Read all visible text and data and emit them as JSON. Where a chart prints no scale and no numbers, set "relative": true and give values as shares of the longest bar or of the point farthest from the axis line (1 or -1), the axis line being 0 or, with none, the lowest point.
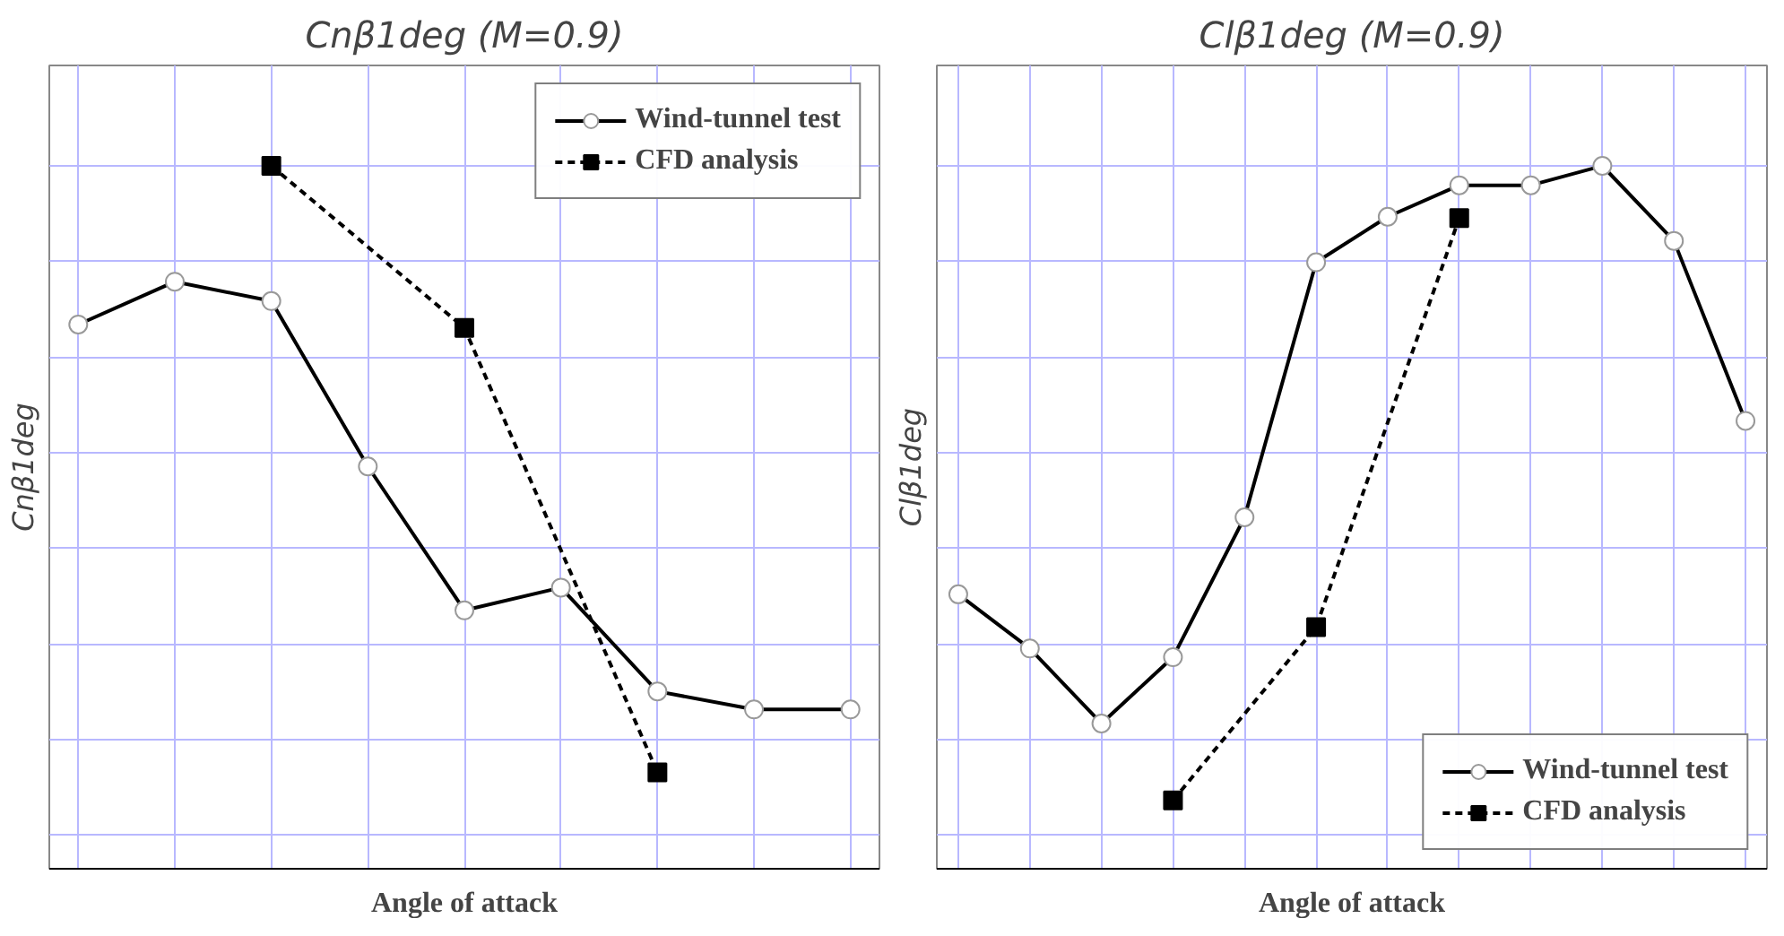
{
  "chart_data": [
    {
      "type": "line",
      "title": "Cnβ1deg (M=0.9)",
      "xlabel": "Angle of attack",
      "ylabel": "Cnβ1deg",
      "relative": true,
      "grid": true,
      "legend": "top right",
      "categories": [
        null,
        null,
        null,
        null,
        null,
        null,
        null,
        null,
        null
      ],
      "series": [
        {
          "name": "Wind-tunnel test",
          "color": "#000000",
          "marker": "circle",
          "line_style": "solid",
          "values": [
            0.763,
            0.827,
            0.798,
            0.551,
            0.336,
            0.37,
            0.215,
            0.188,
            0.188
          ]
        },
        {
          "name": "CFD analysis",
          "color": "#000000",
          "marker": "square",
          "line_style": "dashed",
          "values": [
            null,
            null,
            1.0,
            null,
            0.758,
            null,
            0.094,
            null,
            null
          ]
        }
      ]
    },
    {
      "type": "line",
      "title": "Clβ1deg (M=0.9)",
      "xlabel": "Angle of attack",
      "ylabel": "Clβ1deg",
      "relative": true,
      "grid": true,
      "legend": "bottom right",
      "categories": [
        null,
        null,
        null,
        null,
        null,
        null,
        null,
        null,
        null,
        null,
        null,
        null
      ],
      "series": [
        {
          "name": "Wind-tunnel test",
          "color": "#000000",
          "marker": "circle",
          "line_style": "solid",
          "values": [
            0.36,
            0.279,
            0.167,
            0.266,
            0.475,
            0.856,
            0.924,
            0.971,
            0.971,
            1.0,
            0.888,
            0.619
          ]
        },
        {
          "name": "CFD analysis",
          "color": "#000000",
          "marker": "square",
          "line_style": "dashed",
          "values": [
            null,
            null,
            null,
            0.052,
            null,
            0.311,
            null,
            0.922,
            null,
            null,
            null,
            null
          ]
        }
      ]
    }
  ]
}
